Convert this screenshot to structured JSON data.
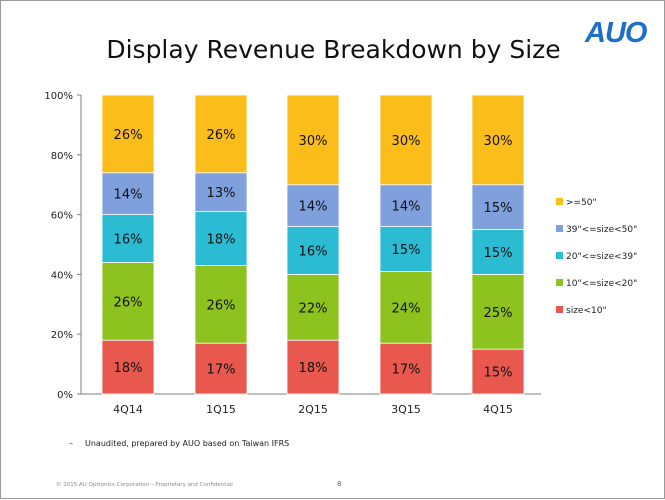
{
  "slide": {
    "logo": "AUO",
    "title": "Display Revenue Breakdown by Size",
    "footnote": "Unaudited, prepared by AUO based on Taiwan IFRS",
    "footnote_bullet": "–",
    "copyright": "© 2015 AU Optronics Corporation – Proprietary and Confidential",
    "page_number": "8"
  },
  "chart_data": {
    "type": "bar",
    "stacked": true,
    "title": "Display Revenue Breakdown by Size",
    "categories": [
      "4Q14",
      "1Q15",
      "2Q15",
      "3Q15",
      "4Q15"
    ],
    "y_ticks": [
      "0%",
      "20%",
      "40%",
      "60%",
      "80%",
      "100%"
    ],
    "ylim": [
      0,
      100
    ],
    "legend_position": "right",
    "series": [
      {
        "name": "size<10\"",
        "color": "#e8584e",
        "values": [
          18,
          17,
          18,
          17,
          15
        ],
        "labels": [
          "18%",
          "17%",
          "18%",
          "17%",
          "15%"
        ]
      },
      {
        "name": "10\"<=size<20\"",
        "color": "#8dc21f",
        "values": [
          26,
          26,
          22,
          24,
          25
        ],
        "labels": [
          "26%",
          "26%",
          "22%",
          "24%",
          "25%"
        ]
      },
      {
        "name": "20\"<=size<39\"",
        "color": "#2bbcd4",
        "values": [
          16,
          18,
          16,
          15,
          15
        ],
        "labels": [
          "16%",
          "18%",
          "16%",
          "15%",
          "15%"
        ]
      },
      {
        "name": "39\"<=size<50\"",
        "color": "#7f9fdd",
        "values": [
          14,
          13,
          14,
          14,
          15
        ],
        "labels": [
          "14%",
          "13%",
          "14%",
          "14%",
          "15%"
        ]
      },
      {
        "name": ">=50\"",
        "color": "#fbbd1a",
        "values": [
          26,
          26,
          30,
          30,
          30
        ],
        "labels": [
          "26%",
          "26%",
          "30%",
          "30%",
          "30%"
        ]
      }
    ]
  }
}
